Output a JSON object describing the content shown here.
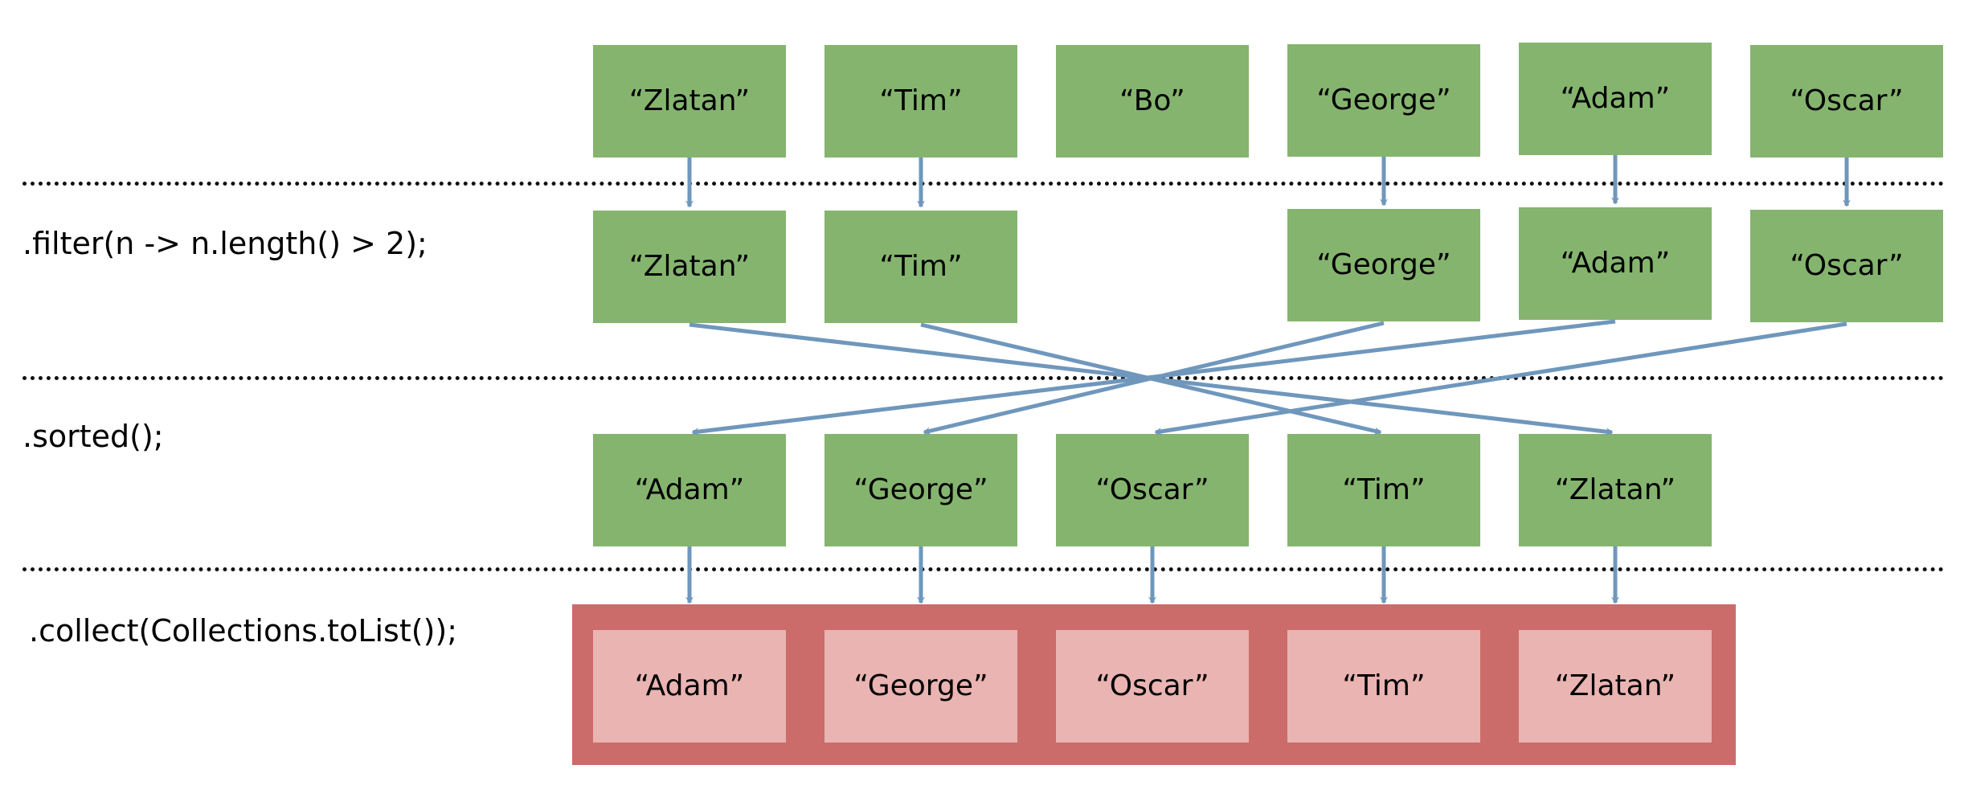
{
  "colors": {
    "element_box": "#85b46f",
    "result_container": "#cb6c6b",
    "result_box": "#e9b4b2",
    "arrow": "#6f97bc",
    "divider": "#111111"
  },
  "operations": {
    "filter": ".filter(n -> n.length() > 2);",
    "sorted": ".sorted();",
    "collect": ".collect(Collections.toList());"
  },
  "source": [
    "“Zlatan”",
    "“Tim”",
    "“Bo”",
    "“George”",
    "“Adam”",
    "“Oscar”"
  ],
  "filtered": [
    "“Zlatan”",
    "“Tim”",
    "“George”",
    "“Adam”",
    "“Oscar”"
  ],
  "sorted": [
    "“Adam”",
    "“George”",
    "“Oscar”",
    "“Tim”",
    "“Zlatan”"
  ],
  "collected": [
    "“Adam”",
    "“George”",
    "“Oscar”",
    "“Tim”",
    "“Zlatan”"
  ]
}
